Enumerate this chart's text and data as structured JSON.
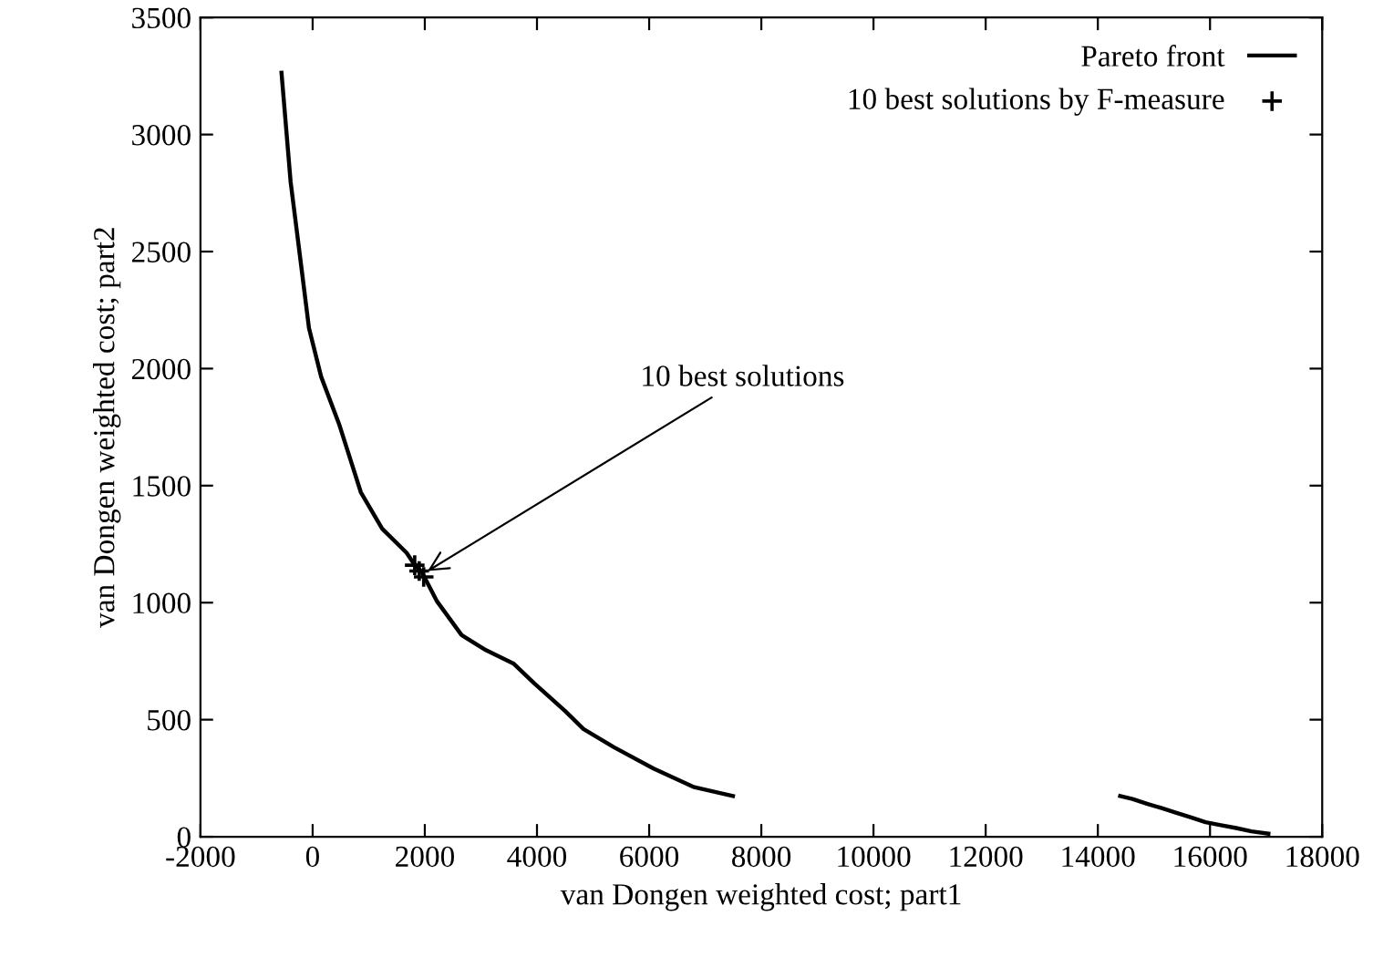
{
  "chart_data": {
    "type": "line",
    "xlabel": "van Dongen weighted cost; part1",
    "ylabel": "van Dongen weighted cost; part2",
    "xlim": [
      -2000,
      18000
    ],
    "xticks": [
      -2000,
      0,
      2000,
      4000,
      6000,
      8000,
      10000,
      12000,
      14000,
      16000,
      18000
    ],
    "ylim": [
      0,
      3500
    ],
    "yticks": [
      0,
      500,
      1000,
      1500,
      2000,
      2500,
      3000,
      3500
    ],
    "grid": false,
    "legend": "top right",
    "series": [
      {
        "name": "Pareto front",
        "color": "#000000",
        "line_style": "solid",
        "marker": "none",
        "x": [
          -555,
          -392,
          -228,
          -65,
          152,
          479,
          859,
          1240,
          1675,
          1783,
          1947,
          2219,
          2654,
          3089,
          3579,
          3958,
          4502,
          4829,
          5373,
          6079,
          6786,
          7494,
          null,
          14398,
          14617,
          14888,
          15139,
          15377,
          15650,
          15922,
          16193,
          16466,
          16737,
          17041
        ],
        "values": [
          3264,
          2797,
          2485,
          2173,
          1965,
          1758,
          1472,
          1316,
          1213,
          1174,
          1130,
          1005,
          862,
          797,
          740,
          654,
          537,
          460,
          382,
          291,
          213,
          174,
          null,
          174,
          161,
          140,
          122,
          104,
          83,
          62,
          49,
          37,
          23,
          13
        ]
      },
      {
        "name": "10 best solutions by F-measure",
        "color": "#000000",
        "type": "scatter",
        "marker": "cross",
        "x": [
          1820,
          1900,
          1980
        ],
        "values": [
          1160,
          1135,
          1110
        ]
      }
    ],
    "annotations": [
      {
        "text": "10 best solutions",
        "x": 2050,
        "y": 1135
      }
    ]
  }
}
